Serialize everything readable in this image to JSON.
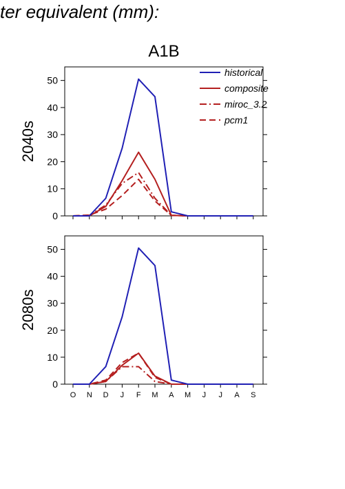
{
  "header": {
    "title": "ter equivalent (mm):"
  },
  "scenario_label": "A1B",
  "legend": {
    "entries": [
      {
        "name": "historical",
        "color": "#1f1fb4",
        "dash": "solid"
      },
      {
        "name": "composite",
        "color": "#b41f1f",
        "dash": "solid"
      },
      {
        "name": "miroc_3.2",
        "color": "#b41f1f",
        "dash": "dashdot"
      },
      {
        "name": "pcm1",
        "color": "#b41f1f",
        "dash": "dashed"
      }
    ]
  },
  "chart_data": [
    {
      "type": "line",
      "panel_label": "2040s",
      "categories": [
        "O",
        "N",
        "D",
        "J",
        "F",
        "M",
        "A",
        "M",
        "J",
        "J",
        "A",
        "S"
      ],
      "ylim": [
        0,
        55
      ],
      "yticks": [
        0,
        10,
        20,
        30,
        40,
        50
      ],
      "show_xtick_labels": false,
      "series": [
        {
          "name": "historical",
          "color": "#1f1fb4",
          "dash": "solid",
          "values": [
            0,
            0,
            6.5,
            25,
            50.5,
            44,
            1.5,
            0,
            0,
            0,
            0,
            0
          ]
        },
        {
          "name": "composite",
          "color": "#b41f1f",
          "dash": "solid",
          "values": [
            0,
            0,
            3.5,
            13,
            23.5,
            13.5,
            0.2,
            0,
            0,
            0,
            0,
            0
          ]
        },
        {
          "name": "miroc_3.2",
          "color": "#b41f1f",
          "dash": "dashdot",
          "values": [
            0,
            0.2,
            4,
            12,
            16,
            6.5,
            0.2,
            0,
            0,
            0,
            0,
            0
          ]
        },
        {
          "name": "pcm1",
          "color": "#b41f1f",
          "dash": "dashed",
          "values": [
            0,
            0.3,
            2.5,
            7.5,
            13.5,
            5.5,
            0.2,
            0,
            0,
            0,
            0,
            0
          ]
        }
      ]
    },
    {
      "type": "line",
      "panel_label": "2080s",
      "categories": [
        "O",
        "N",
        "D",
        "J",
        "F",
        "M",
        "A",
        "M",
        "J",
        "J",
        "A",
        "S"
      ],
      "ylim": [
        0,
        55
      ],
      "yticks": [
        0,
        10,
        20,
        30,
        40,
        50
      ],
      "show_xtick_labels": true,
      "series": [
        {
          "name": "historical",
          "color": "#1f1fb4",
          "dash": "solid",
          "values": [
            0,
            0,
            6.5,
            25,
            50.5,
            44,
            1.5,
            0,
            0,
            0,
            0,
            0
          ]
        },
        {
          "name": "composite",
          "color": "#b41f1f",
          "dash": "solid",
          "values": [
            0,
            0,
            1,
            7,
            11.5,
            3,
            0,
            0,
            0,
            0,
            0,
            0
          ]
        },
        {
          "name": "miroc_3.2",
          "color": "#b41f1f",
          "dash": "dashdot",
          "values": [
            0,
            0,
            1,
            6.5,
            6.5,
            1,
            0,
            0,
            0,
            0,
            0,
            0
          ]
        },
        {
          "name": "pcm1",
          "color": "#b41f1f",
          "dash": "dashed",
          "values": [
            0,
            0,
            1.5,
            8,
            11.5,
            2.5,
            0,
            0,
            0,
            0,
            0,
            0
          ]
        }
      ]
    }
  ]
}
